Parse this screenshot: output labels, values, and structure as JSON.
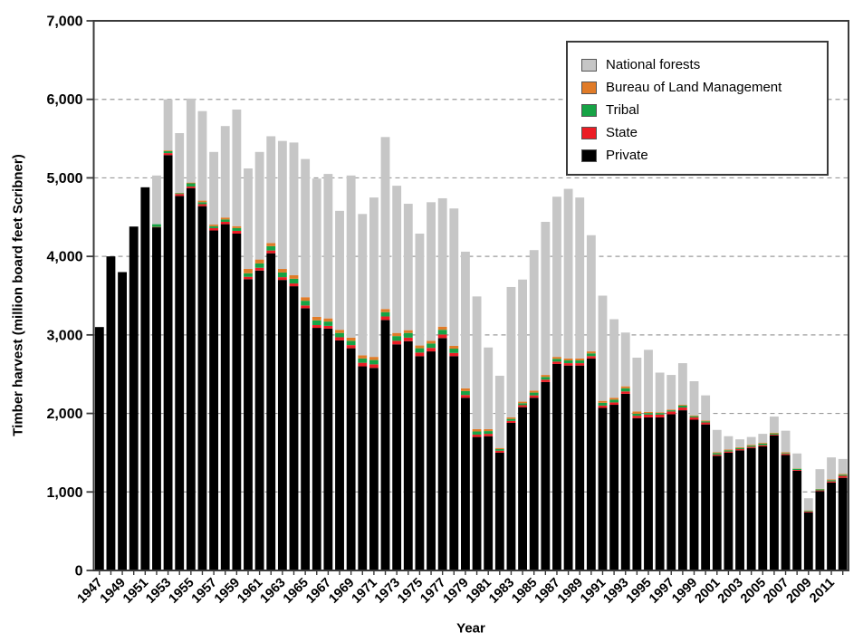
{
  "background": "#ffffff",
  "chart_data": {
    "type": "bar",
    "subtype": "stacked-vertical",
    "title": "",
    "xlabel": "Year",
    "ylabel": "Timber harvest (million board feet Scribner)",
    "ylim": [
      0,
      7000
    ],
    "ytick_step": 1000,
    "ytick_labels": [
      "0",
      "1,000",
      "2,000",
      "3,000",
      "4,000",
      "5,000",
      "6,000",
      "7,000"
    ],
    "grid": "horizontal-dashed",
    "legend_position": "top-right",
    "legend_order": [
      "National forests",
      "Bureau of Land Management",
      "Tribal",
      "State",
      "Private"
    ],
    "xtick_labels": [
      "1947",
      "1949",
      "1951",
      "1953",
      "1955",
      "1957",
      "1959",
      "1961",
      "1963",
      "1965",
      "1967",
      "1969",
      "1971",
      "1973",
      "1975",
      "1977",
      "1979",
      "1981",
      "1983",
      "1985",
      "1987",
      "1989",
      "1991",
      "1993",
      "1995",
      "1997",
      "1999",
      "2001",
      "2003",
      "2005",
      "2007",
      "2009",
      "2011"
    ],
    "years": [
      1947,
      1948,
      1949,
      1950,
      1951,
      1952,
      1953,
      1954,
      1955,
      1956,
      1957,
      1958,
      1959,
      1960,
      1961,
      1962,
      1963,
      1964,
      1965,
      1966,
      1967,
      1968,
      1969,
      1970,
      1971,
      1972,
      1973,
      1974,
      1975,
      1976,
      1977,
      1978,
      1979,
      1980,
      1981,
      1982,
      1983,
      1984,
      1985,
      1986,
      1987,
      1988,
      1989,
      1990,
      1991,
      1992,
      1993,
      1994,
      1995,
      1996,
      1997,
      1998,
      1999,
      2000,
      2001,
      2002,
      2003,
      2004,
      2005,
      2006,
      2007,
      2008,
      2009,
      2010,
      2011,
      2012
    ],
    "series": [
      {
        "name": "Private",
        "color": "#000000",
        "values": [
          3100,
          4000,
          3800,
          4380,
          4880,
          4370,
          5290,
          4770,
          4870,
          4640,
          4330,
          4410,
          4290,
          3710,
          3820,
          4040,
          3700,
          3620,
          3340,
          3090,
          3080,
          2930,
          2830,
          2600,
          2580,
          3190,
          2880,
          2920,
          2730,
          2790,
          2960,
          2730,
          2200,
          1700,
          1710,
          1500,
          1880,
          2080,
          2200,
          2400,
          2630,
          2610,
          2610,
          2700,
          2070,
          2110,
          2250,
          1940,
          1950,
          1950,
          1990,
          2040,
          1920,
          1860,
          1460,
          1500,
          1530,
          1560,
          1580,
          1720,
          1470,
          1270,
          740,
          1010,
          1120,
          1180
        ]
      },
      {
        "name": "State",
        "color": "#ec1c24",
        "values": [
          0,
          0,
          0,
          0,
          0,
          5,
          25,
          25,
          20,
          25,
          30,
          30,
          35,
          30,
          35,
          35,
          35,
          35,
          35,
          35,
          35,
          40,
          40,
          45,
          45,
          45,
          45,
          45,
          45,
          45,
          45,
          40,
          35,
          30,
          30,
          25,
          25,
          25,
          30,
          30,
          30,
          30,
          30,
          30,
          30,
          30,
          30,
          30,
          35,
          35,
          35,
          35,
          30,
          25,
          15,
          15,
          15,
          15,
          15,
          10,
          15,
          10,
          10,
          10,
          15,
          25
        ]
      },
      {
        "name": "Tribal",
        "color": "#16a345",
        "values": [
          0,
          0,
          0,
          0,
          0,
          35,
          25,
          10,
          40,
          25,
          25,
          30,
          35,
          45,
          55,
          55,
          60,
          60,
          60,
          60,
          55,
          55,
          55,
          55,
          55,
          55,
          60,
          60,
          55,
          55,
          60,
          55,
          50,
          40,
          35,
          20,
          25,
          25,
          35,
          35,
          35,
          35,
          35,
          35,
          35,
          35,
          40,
          25,
          20,
          20,
          15,
          25,
          15,
          15,
          20,
          15,
          15,
          15,
          20,
          15,
          10,
          15,
          10,
          15,
          15,
          15
        ]
      },
      {
        "name": "Bureau of Land Management",
        "color": "#e07b28",
        "values": [
          0,
          0,
          0,
          0,
          0,
          0,
          10,
          5,
          10,
          20,
          20,
          25,
          25,
          55,
          50,
          40,
          45,
          45,
          45,
          45,
          40,
          40,
          40,
          40,
          40,
          40,
          40,
          35,
          35,
          35,
          40,
          35,
          35,
          30,
          25,
          15,
          20,
          20,
          25,
          25,
          25,
          25,
          25,
          25,
          25,
          25,
          25,
          30,
          15,
          10,
          10,
          10,
          10,
          10,
          10,
          10,
          10,
          10,
          10,
          10,
          10,
          5,
          5,
          5,
          10,
          10
        ]
      },
      {
        "name": "National forests",
        "color": "#c6c6c6",
        "values": [
          0,
          0,
          0,
          0,
          0,
          620,
          650,
          760,
          1070,
          1140,
          925,
          1165,
          1485,
          1280,
          1370,
          1360,
          1630,
          1690,
          1760,
          1760,
          1840,
          1515,
          2065,
          1800,
          2030,
          2190,
          1875,
          1610,
          1425,
          1765,
          1635,
          1750,
          1740,
          1690,
          1040,
          920,
          1660,
          1555,
          1790,
          1950,
          2040,
          2160,
          2050,
          1480,
          1340,
          1000,
          685,
          685,
          790,
          505,
          440,
          530,
          435,
          320,
          285,
          170,
          100,
          100,
          115,
          205,
          275,
          190,
          155,
          250,
          280,
          190
        ]
      }
    ]
  }
}
